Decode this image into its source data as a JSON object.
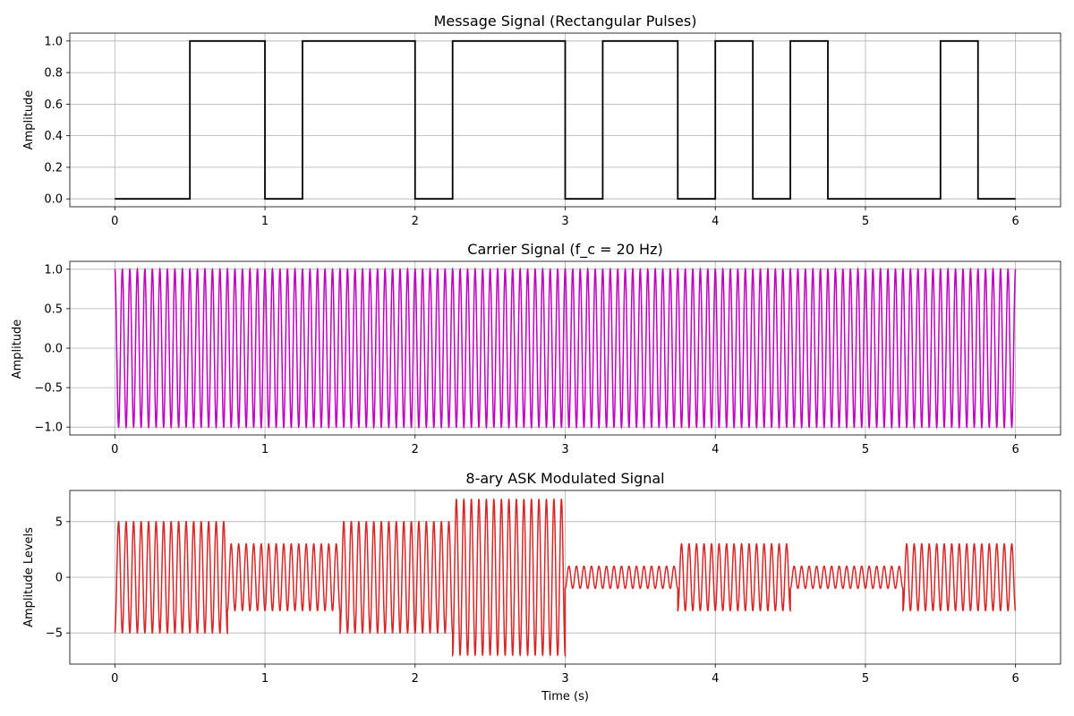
{
  "chart_data": [
    {
      "type": "line",
      "title": "Message Signal (Rectangular Pulses)",
      "xlabel": "",
      "ylabel": "Amplitude",
      "xlim": [
        -0.3,
        6.3
      ],
      "ylim": [
        -0.05,
        1.05
      ],
      "xticks": [
        0,
        1,
        2,
        3,
        4,
        5,
        6
      ],
      "xtick_labels": [
        "0",
        "1",
        "2",
        "3",
        "4",
        "5",
        "6"
      ],
      "yticks": [
        0.0,
        0.2,
        0.4,
        0.6,
        0.8,
        1.0
      ],
      "ytick_labels": [
        "0.0",
        "0.2",
        "0.4",
        "0.6",
        "0.8",
        "1.0"
      ],
      "grid": true,
      "color": "#000000",
      "series": [
        {
          "segments": [
            {
              "start": 0.0,
              "end": 0.5,
              "level": 0
            },
            {
              "start": 0.5,
              "end": 1.0,
              "level": 1
            },
            {
              "start": 1.0,
              "end": 1.25,
              "level": 0
            },
            {
              "start": 1.25,
              "end": 2.0,
              "level": 1
            },
            {
              "start": 2.0,
              "end": 2.25,
              "level": 0
            },
            {
              "start": 2.25,
              "end": 3.0,
              "level": 1
            },
            {
              "start": 3.0,
              "end": 3.25,
              "level": 0
            },
            {
              "start": 3.25,
              "end": 3.75,
              "level": 1
            },
            {
              "start": 3.75,
              "end": 4.0,
              "level": 0
            },
            {
              "start": 4.0,
              "end": 4.25,
              "level": 1
            },
            {
              "start": 4.25,
              "end": 4.5,
              "level": 0
            },
            {
              "start": 4.5,
              "end": 4.75,
              "level": 1
            },
            {
              "start": 4.75,
              "end": 5.5,
              "level": 0
            },
            {
              "start": 5.5,
              "end": 5.75,
              "level": 1
            },
            {
              "start": 5.75,
              "end": 6.0,
              "level": 0
            }
          ]
        }
      ]
    },
    {
      "type": "line",
      "title": "Carrier Signal (f_c = 20 Hz)",
      "xlabel": "",
      "ylabel": "Amplitude",
      "xlim": [
        -0.3,
        6.3
      ],
      "ylim": [
        -1.1,
        1.1
      ],
      "xticks": [
        0,
        1,
        2,
        3,
        4,
        5,
        6
      ],
      "xtick_labels": [
        "0",
        "1",
        "2",
        "3",
        "4",
        "5",
        "6"
      ],
      "yticks": [
        -1.0,
        -0.5,
        0.0,
        0.5,
        1.0
      ],
      "ytick_labels": [
        "−1.0",
        "−0.5",
        "0.0",
        "0.5",
        "1.0"
      ],
      "grid": true,
      "color": "#bf00bf",
      "series": [
        {
          "waveform": "cosine",
          "frequency_hz": 20,
          "amplitude": 1.0,
          "t_start": 0,
          "t_end": 6
        }
      ]
    },
    {
      "type": "line",
      "title": "8-ary ASK Modulated Signal",
      "xlabel": "Time (s)",
      "ylabel": "Amplitude Levels",
      "xlim": [
        -0.3,
        6.3
      ],
      "ylim": [
        -7.8,
        7.8
      ],
      "xticks": [
        0,
        1,
        2,
        3,
        4,
        5,
        6
      ],
      "xtick_labels": [
        "0",
        "1",
        "2",
        "3",
        "4",
        "5",
        "6"
      ],
      "yticks": [
        -5,
        0,
        5
      ],
      "ytick_labels": [
        "−5",
        "0",
        "5"
      ],
      "grid": true,
      "color": "#d62728",
      "series": [
        {
          "waveform": "sine",
          "frequency_hz": 20,
          "phase": "-cos (starts at -A)",
          "symbols": [
            {
              "start": 0.0,
              "end": 0.75,
              "amplitude": 5
            },
            {
              "start": 0.75,
              "end": 1.5,
              "amplitude": 3
            },
            {
              "start": 1.5,
              "end": 2.25,
              "amplitude": 5
            },
            {
              "start": 2.25,
              "end": 3.0,
              "amplitude": 7
            },
            {
              "start": 3.0,
              "end": 3.75,
              "amplitude": 1
            },
            {
              "start": 3.75,
              "end": 4.5,
              "amplitude": 3
            },
            {
              "start": 4.5,
              "end": 5.25,
              "amplitude": 1
            },
            {
              "start": 5.25,
              "end": 6.0,
              "amplitude": 3
            }
          ]
        }
      ]
    }
  ]
}
